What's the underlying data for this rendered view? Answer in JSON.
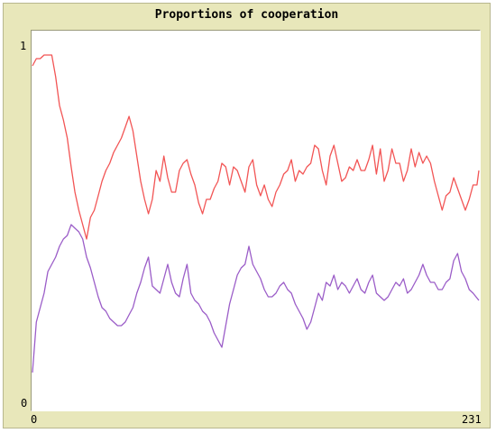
{
  "chart_data": {
    "type": "line",
    "title": "Proportions of cooperation",
    "xlim": [
      0,
      231
    ],
    "ylim": [
      0,
      1
    ],
    "x_tick_labels": [
      "0",
      "231"
    ],
    "y_tick_labels": [
      "1",
      "0"
    ],
    "grid": false,
    "legend": "none",
    "series": [
      {
        "color": "#f25555",
        "points": [
          [
            0,
            0.93
          ],
          [
            2,
            0.95
          ],
          [
            4,
            0.95
          ],
          [
            6,
            0.96
          ],
          [
            8,
            0.96
          ],
          [
            10,
            0.96
          ],
          [
            12,
            0.9
          ],
          [
            14,
            0.82
          ],
          [
            16,
            0.78
          ],
          [
            18,
            0.73
          ],
          [
            20,
            0.65
          ],
          [
            22,
            0.58
          ],
          [
            24,
            0.53
          ],
          [
            26,
            0.49
          ],
          [
            28,
            0.45
          ],
          [
            30,
            0.51
          ],
          [
            32,
            0.53
          ],
          [
            34,
            0.57
          ],
          [
            36,
            0.61
          ],
          [
            38,
            0.64
          ],
          [
            40,
            0.66
          ],
          [
            42,
            0.69
          ],
          [
            44,
            0.71
          ],
          [
            46,
            0.73
          ],
          [
            48,
            0.76
          ],
          [
            50,
            0.79
          ],
          [
            52,
            0.75
          ],
          [
            54,
            0.68
          ],
          [
            56,
            0.61
          ],
          [
            58,
            0.56
          ],
          [
            60,
            0.52
          ],
          [
            62,
            0.56
          ],
          [
            64,
            0.64
          ],
          [
            66,
            0.61
          ],
          [
            68,
            0.68
          ],
          [
            70,
            0.62
          ],
          [
            72,
            0.58
          ],
          [
            74,
            0.58
          ],
          [
            76,
            0.64
          ],
          [
            78,
            0.66
          ],
          [
            80,
            0.67
          ],
          [
            82,
            0.63
          ],
          [
            84,
            0.6
          ],
          [
            86,
            0.55
          ],
          [
            88,
            0.52
          ],
          [
            90,
            0.56
          ],
          [
            92,
            0.56
          ],
          [
            94,
            0.59
          ],
          [
            96,
            0.61
          ],
          [
            98,
            0.66
          ],
          [
            100,
            0.65
          ],
          [
            102,
            0.6
          ],
          [
            104,
            0.65
          ],
          [
            106,
            0.64
          ],
          [
            108,
            0.61
          ],
          [
            110,
            0.58
          ],
          [
            112,
            0.65
          ],
          [
            114,
            0.67
          ],
          [
            116,
            0.6
          ],
          [
            118,
            0.57
          ],
          [
            120,
            0.6
          ],
          [
            122,
            0.56
          ],
          [
            124,
            0.54
          ],
          [
            126,
            0.58
          ],
          [
            128,
            0.6
          ],
          [
            130,
            0.63
          ],
          [
            132,
            0.64
          ],
          [
            134,
            0.67
          ],
          [
            136,
            0.61
          ],
          [
            138,
            0.64
          ],
          [
            140,
            0.63
          ],
          [
            142,
            0.65
          ],
          [
            144,
            0.66
          ],
          [
            146,
            0.71
          ],
          [
            148,
            0.7
          ],
          [
            150,
            0.64
          ],
          [
            152,
            0.6
          ],
          [
            154,
            0.68
          ],
          [
            156,
            0.71
          ],
          [
            158,
            0.66
          ],
          [
            160,
            0.61
          ],
          [
            162,
            0.62
          ],
          [
            164,
            0.65
          ],
          [
            166,
            0.64
          ],
          [
            168,
            0.67
          ],
          [
            170,
            0.64
          ],
          [
            172,
            0.64
          ],
          [
            174,
            0.67
          ],
          [
            176,
            0.71
          ],
          [
            178,
            0.63
          ],
          [
            180,
            0.7
          ],
          [
            182,
            0.61
          ],
          [
            184,
            0.64
          ],
          [
            186,
            0.7
          ],
          [
            188,
            0.66
          ],
          [
            190,
            0.66
          ],
          [
            192,
            0.61
          ],
          [
            194,
            0.64
          ],
          [
            196,
            0.7
          ],
          [
            198,
            0.65
          ],
          [
            200,
            0.69
          ],
          [
            202,
            0.66
          ],
          [
            204,
            0.68
          ],
          [
            206,
            0.66
          ],
          [
            208,
            0.61
          ],
          [
            210,
            0.57
          ],
          [
            212,
            0.53
          ],
          [
            214,
            0.57
          ],
          [
            216,
            0.58
          ],
          [
            218,
            0.62
          ],
          [
            220,
            0.59
          ],
          [
            222,
            0.56
          ],
          [
            224,
            0.53
          ],
          [
            226,
            0.56
          ],
          [
            228,
            0.6
          ],
          [
            230,
            0.6
          ],
          [
            231,
            0.64
          ]
        ]
      },
      {
        "color": "#9b5dc8",
        "points": [
          [
            0,
            0.08
          ],
          [
            2,
            0.22
          ],
          [
            4,
            0.26
          ],
          [
            6,
            0.3
          ],
          [
            8,
            0.36
          ],
          [
            10,
            0.38
          ],
          [
            12,
            0.4
          ],
          [
            14,
            0.43
          ],
          [
            16,
            0.45
          ],
          [
            18,
            0.46
          ],
          [
            20,
            0.49
          ],
          [
            22,
            0.48
          ],
          [
            24,
            0.47
          ],
          [
            26,
            0.45
          ],
          [
            28,
            0.4
          ],
          [
            30,
            0.37
          ],
          [
            32,
            0.33
          ],
          [
            34,
            0.29
          ],
          [
            36,
            0.26
          ],
          [
            38,
            0.25
          ],
          [
            40,
            0.23
          ],
          [
            42,
            0.22
          ],
          [
            44,
            0.21
          ],
          [
            46,
            0.21
          ],
          [
            48,
            0.22
          ],
          [
            50,
            0.24
          ],
          [
            52,
            0.26
          ],
          [
            54,
            0.3
          ],
          [
            56,
            0.33
          ],
          [
            58,
            0.37
          ],
          [
            60,
            0.4
          ],
          [
            62,
            0.32
          ],
          [
            64,
            0.31
          ],
          [
            66,
            0.3
          ],
          [
            68,
            0.34
          ],
          [
            70,
            0.38
          ],
          [
            72,
            0.33
          ],
          [
            74,
            0.3
          ],
          [
            76,
            0.29
          ],
          [
            78,
            0.34
          ],
          [
            80,
            0.38
          ],
          [
            82,
            0.3
          ],
          [
            84,
            0.28
          ],
          [
            86,
            0.27
          ],
          [
            88,
            0.25
          ],
          [
            90,
            0.24
          ],
          [
            92,
            0.22
          ],
          [
            94,
            0.19
          ],
          [
            96,
            0.17
          ],
          [
            98,
            0.15
          ],
          [
            100,
            0.21
          ],
          [
            102,
            0.27
          ],
          [
            104,
            0.31
          ],
          [
            106,
            0.35
          ],
          [
            108,
            0.37
          ],
          [
            110,
            0.38
          ],
          [
            112,
            0.43
          ],
          [
            114,
            0.38
          ],
          [
            116,
            0.36
          ],
          [
            118,
            0.34
          ],
          [
            120,
            0.31
          ],
          [
            122,
            0.29
          ],
          [
            124,
            0.29
          ],
          [
            126,
            0.3
          ],
          [
            128,
            0.32
          ],
          [
            130,
            0.33
          ],
          [
            132,
            0.31
          ],
          [
            134,
            0.3
          ],
          [
            136,
            0.27
          ],
          [
            138,
            0.25
          ],
          [
            140,
            0.23
          ],
          [
            142,
            0.2
          ],
          [
            144,
            0.22
          ],
          [
            146,
            0.26
          ],
          [
            148,
            0.3
          ],
          [
            150,
            0.28
          ],
          [
            152,
            0.33
          ],
          [
            154,
            0.32
          ],
          [
            156,
            0.35
          ],
          [
            158,
            0.31
          ],
          [
            160,
            0.33
          ],
          [
            162,
            0.32
          ],
          [
            164,
            0.3
          ],
          [
            166,
            0.32
          ],
          [
            168,
            0.34
          ],
          [
            170,
            0.31
          ],
          [
            172,
            0.3
          ],
          [
            174,
            0.33
          ],
          [
            176,
            0.35
          ],
          [
            178,
            0.3
          ],
          [
            180,
            0.29
          ],
          [
            182,
            0.28
          ],
          [
            184,
            0.29
          ],
          [
            186,
            0.31
          ],
          [
            188,
            0.33
          ],
          [
            190,
            0.32
          ],
          [
            192,
            0.34
          ],
          [
            194,
            0.3
          ],
          [
            196,
            0.31
          ],
          [
            198,
            0.33
          ],
          [
            200,
            0.35
          ],
          [
            202,
            0.38
          ],
          [
            204,
            0.35
          ],
          [
            206,
            0.33
          ],
          [
            208,
            0.33
          ],
          [
            210,
            0.31
          ],
          [
            212,
            0.31
          ],
          [
            214,
            0.33
          ],
          [
            216,
            0.34
          ],
          [
            218,
            0.39
          ],
          [
            220,
            0.41
          ],
          [
            222,
            0.36
          ],
          [
            224,
            0.34
          ],
          [
            226,
            0.31
          ],
          [
            228,
            0.3
          ],
          [
            231,
            0.28
          ]
        ]
      }
    ]
  }
}
